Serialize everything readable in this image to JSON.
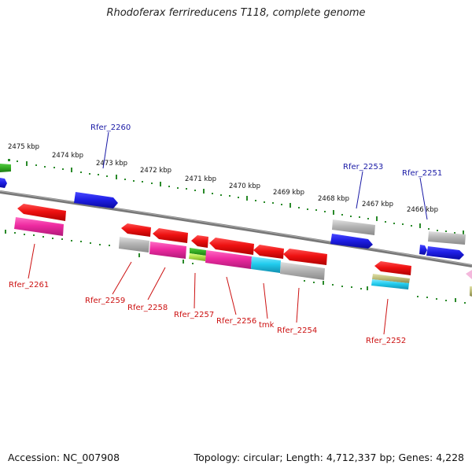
{
  "title": "Rhodoferax ferrireducens T118, complete genome",
  "accession": "Accession: NC_007908",
  "topology": "Topology: circular; Length: 4,712,337 bp; Genes: 4,228",
  "scale_labels": [
    "2475 kbp",
    "2474 kbp",
    "2473 kbp",
    "2472 kbp",
    "2471 kbp",
    "2470 kbp",
    "2469 kbp",
    "2468 kbp",
    "2467 kbp",
    "2466 kbp"
  ],
  "forward_gene_labels": [
    "Rfer_2260",
    "Rfer_2253",
    "Rfer_2251"
  ],
  "reverse_gene_labels": [
    "Rfer_2261",
    "Rfer_2259",
    "Rfer_2258",
    "Rfer_2257",
    "Rfer_2256",
    "tmk",
    "Rfer_2254",
    "Rfer_2252"
  ],
  "colors": {
    "forward_label": "#1a1aa6",
    "reverse_label": "#cc1010",
    "gene_blue": "#1f1fe6",
    "gene_red": "#ee1111",
    "gene_magenta": "#ee2aa0",
    "gene_grey": "#b4b4b4",
    "gene_cyan": "#22ccee",
    "gene_green": "#33aa22",
    "gene_lime": "#aadd44",
    "gene_olive": "#bbbb77",
    "tick_green": "#2a8a2a",
    "axis_grey": "#8a8a8a"
  }
}
